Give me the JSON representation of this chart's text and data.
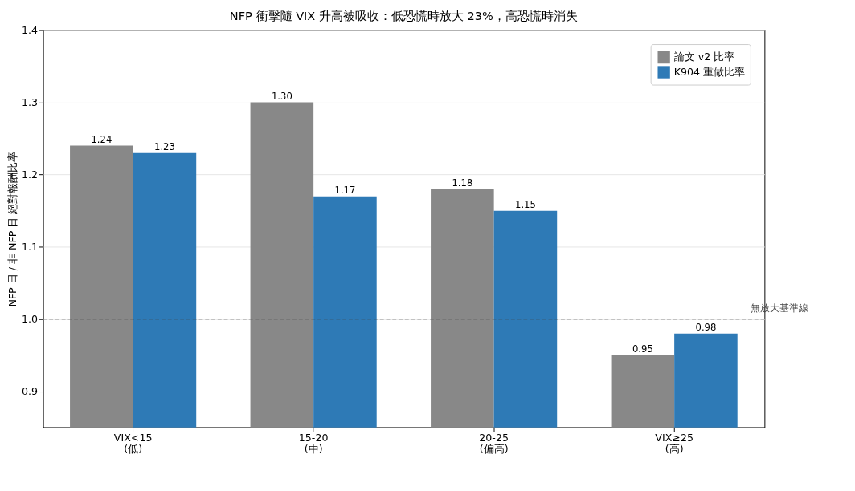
{
  "chart_data": {
    "type": "bar",
    "title": "NFP 衝擊隨 VIX 升高被吸收：低恐慌時放大 23%，高恐慌時消失",
    "ylabel": "NFP 日 / 非 NFP 日 絕對報酬比率",
    "categories": [
      "VIX<15\n(低)",
      "15-20\n(中)",
      "20-25\n(偏高)",
      "VIX≥25\n(高)"
    ],
    "series": [
      {
        "name": "論文 v2 比率",
        "color": "#888888",
        "values": [
          1.24,
          1.3,
          1.18,
          0.95
        ],
        "value_labels": [
          "1.24",
          "1.30",
          "1.18",
          "0.95"
        ]
      },
      {
        "name": "K904 重做比率",
        "color": "#2e7ab6",
        "values": [
          1.23,
          1.17,
          1.15,
          0.98
        ],
        "value_labels": [
          "1.23",
          "1.17",
          "1.15",
          "0.98"
        ]
      }
    ],
    "ylim": [
      0.85,
      1.4
    ],
    "yticks": [
      0.9,
      {
        "value": 1.0,
        "label": "1.0"
      },
      1.1,
      1.2,
      1.3,
      1.4
    ],
    "ref_lines": [
      {
        "axis": "y",
        "value": 1.0,
        "label": "無放大基準線",
        "color": "#444444",
        "line_style": "dashed"
      }
    ],
    "grid": "y",
    "legend": "top right"
  }
}
